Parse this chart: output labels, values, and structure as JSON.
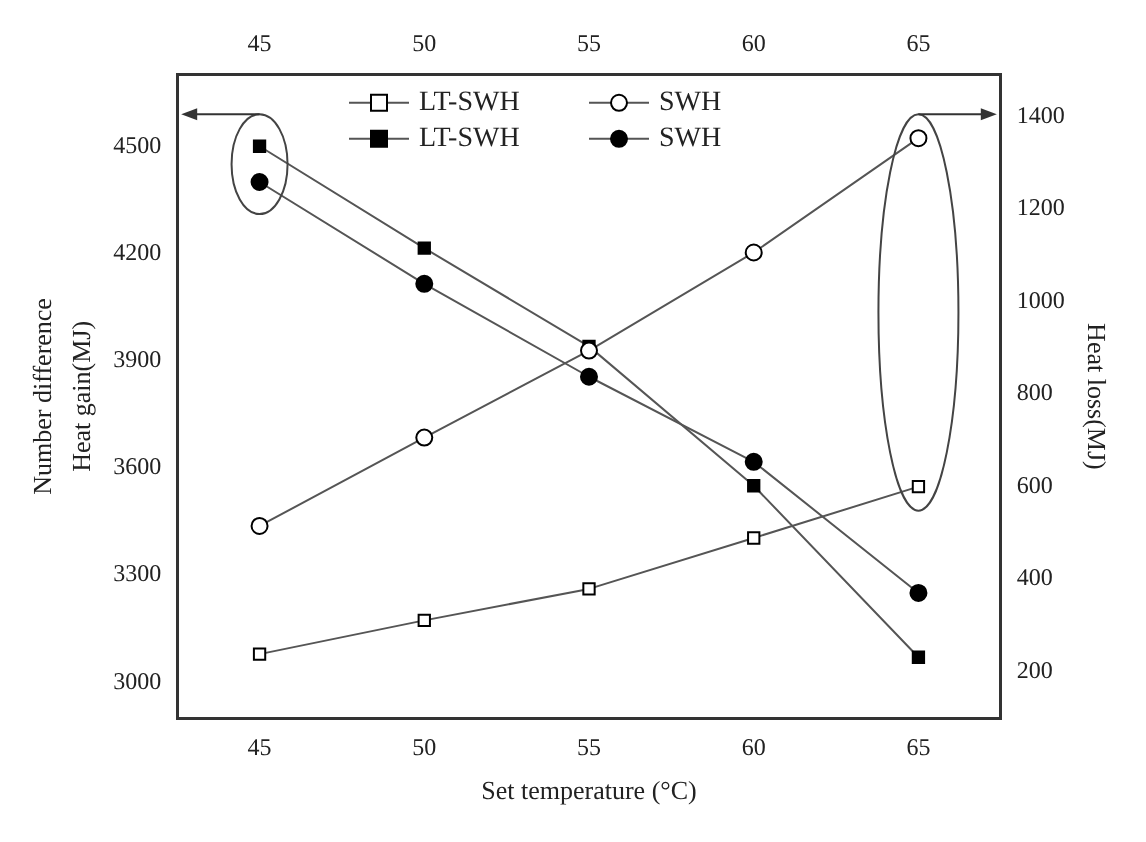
{
  "chart_data": {
    "type": "line",
    "xlabel": "Set temperature (°C)",
    "ylabel": "Heat gain(MJ)",
    "y2label": "Heat loss(MJ)",
    "annotations": [
      "Number difference"
    ],
    "x": [
      45,
      50,
      55,
      60,
      65
    ],
    "series": [
      {
        "name": "LT-SWH",
        "color": "#000000",
        "marker": "square",
        "axis": "y2",
        "values": [
          238,
          311,
          379,
          489,
          600
        ]
      },
      {
        "name": "LT-SWH",
        "color": "#000000",
        "marker": "square",
        "axis": "y",
        "values": [
          4500,
          4215,
          3940,
          3550,
          3070
        ]
      },
      {
        "name": "SWH",
        "color": "#000000",
        "marker": "circle",
        "axis": "y2",
        "values": [
          515,
          706,
          894,
          1106,
          1353
        ]
      },
      {
        "name": "SWH",
        "color": "#000000",
        "marker": "circle",
        "axis": "y",
        "values": [
          4400,
          4115,
          3855,
          3617,
          3250
        ]
      }
    ],
    "xlim": [
      42.5,
      67.5
    ],
    "xticks": [
      45,
      50,
      55,
      60,
      65
    ],
    "x2lim": [
      42.5,
      67.5
    ],
    "x2ticks": [
      45,
      50,
      55,
      60,
      65
    ],
    "ylim": [
      2900,
      4700
    ],
    "yticks": [
      3000,
      3300,
      3600,
      3900,
      4200,
      4500
    ],
    "y2lim": [
      100,
      1490
    ],
    "y2ticks": [
      200,
      400,
      600,
      800,
      1000,
      1200,
      1400
    ],
    "grid": false,
    "legend": "top",
    "line_style": "solid"
  }
}
